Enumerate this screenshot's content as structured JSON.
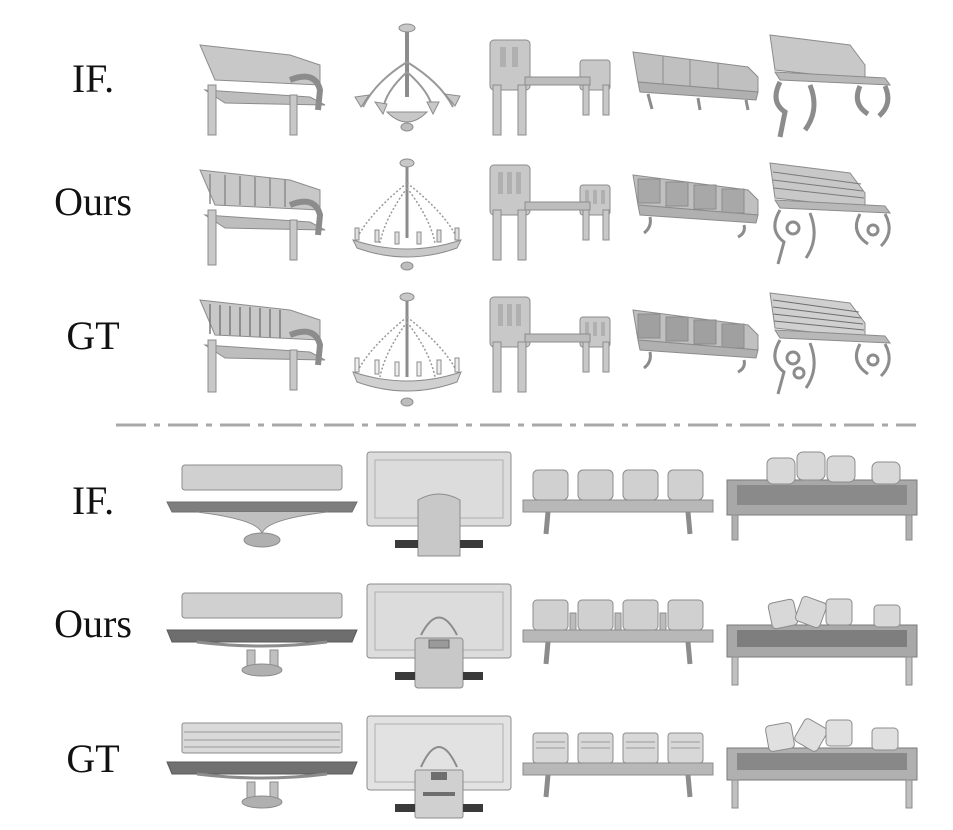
{
  "top_section": {
    "rows": [
      {
        "label": "IF."
      },
      {
        "label": "Ours"
      },
      {
        "label": "GT"
      }
    ],
    "objects": [
      "bench-curved",
      "chandelier",
      "bench-slat-armchair",
      "seating-row-cushion",
      "bench-ornate"
    ]
  },
  "bottom_section": {
    "rows": [
      {
        "label": "IF."
      },
      {
        "label": "Ours"
      },
      {
        "label": "GT"
      }
    ],
    "objects": [
      "bench-flat",
      "monitor",
      "seating-row-chairs",
      "sofa-pillows"
    ]
  },
  "colors": {
    "model_fill": "#c8c8c8",
    "model_stroke": "#8c8c8c",
    "model_dark": "#6e6e6e",
    "divider": "#a8a8a8"
  }
}
